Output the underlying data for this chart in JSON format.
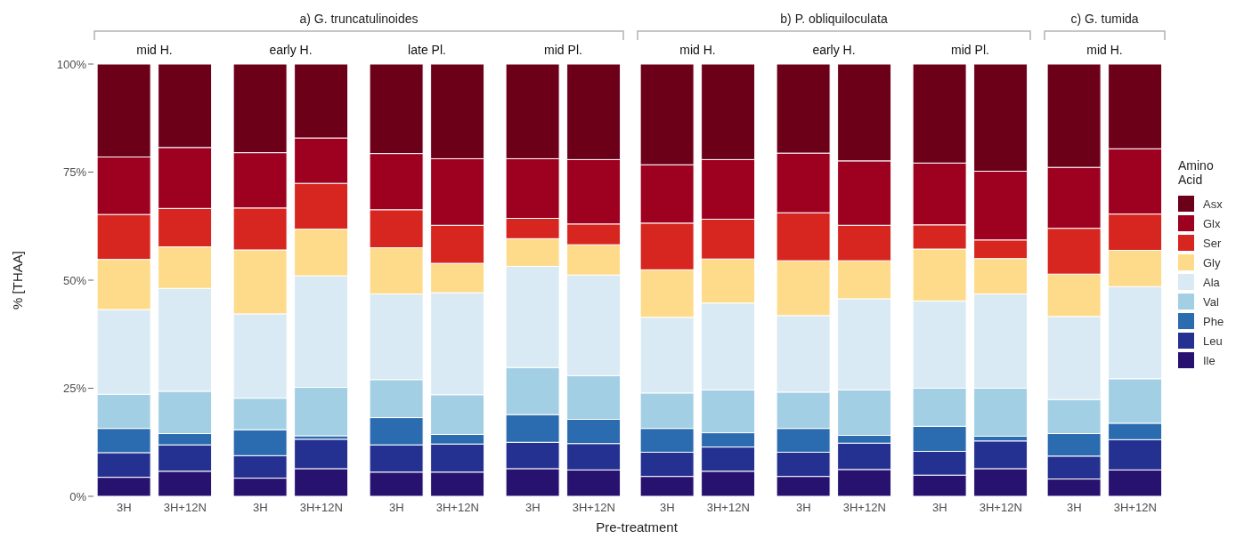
{
  "chart_data": [
    {
      "type": "bar",
      "stacked": true,
      "title": "a) G. truncatulinoides",
      "ylabel": "% [THAA]",
      "annotations": [
        "mid H.",
        "early H.",
        "late Pl.",
        "mid Pl."
      ],
      "categories": [
        "3H",
        "3H+12N",
        "3H",
        "3H+12N",
        "3H",
        "3H+12N",
        "3H",
        "3H+12N"
      ],
      "ylim": [
        0,
        100
      ],
      "yticks": [
        {
          "value": 0,
          "label": "0%"
        },
        {
          "value": 25,
          "label": "25%"
        },
        {
          "value": 50,
          "label": "50%"
        },
        {
          "value": 75,
          "label": "75%"
        },
        {
          "value": 100,
          "label": "100%"
        }
      ],
      "series": [
        {
          "color": "#281270",
          "values": [
            4.4,
            5.8,
            4.2,
            6.4,
            5.6,
            5.6,
            6.4,
            6.1
          ]
        },
        {
          "color": "#253190",
          "values": [
            5.7,
            6.1,
            5.2,
            6.8,
            6.3,
            6.5,
            6.1,
            6.1
          ]
        },
        {
          "color": "#2b6bb0",
          "values": [
            5.6,
            2.6,
            6.0,
            0.8,
            6.3,
            2.2,
            6.4,
            5.6
          ]
        },
        {
          "color": "#a3cfe4",
          "values": [
            7.9,
            9.8,
            7.3,
            11.2,
            8.8,
            9.2,
            10.9,
            10.1
          ]
        },
        {
          "color": "#d9eaf4",
          "values": [
            19.6,
            23.8,
            19.5,
            25.8,
            19.8,
            23.6,
            23.4,
            23.3
          ]
        },
        {
          "color": "#fedb8b",
          "values": [
            11.6,
            9.6,
            14.8,
            10.8,
            10.7,
            6.8,
            6.4,
            7.0
          ]
        },
        {
          "color": "#d6261f",
          "values": [
            10.4,
            8.9,
            9.7,
            10.6,
            8.8,
            8.8,
            4.7,
            4.8
          ]
        },
        {
          "color": "#9e0020",
          "values": [
            13.3,
            14.1,
            12.8,
            10.5,
            13.0,
            15.4,
            13.8,
            14.9
          ]
        },
        {
          "color": "#6c0019",
          "values": [
            21.5,
            19.3,
            20.5,
            17.1,
            20.7,
            21.9,
            21.9,
            22.1
          ]
        }
      ]
    },
    {
      "type": "bar",
      "stacked": true,
      "title": "b) P. obliquiloculata",
      "xlabel": "Pre-treatment",
      "tick_labels": "x",
      "annotations": [
        "mid H.",
        "early H.",
        "mid Pl."
      ],
      "categories": [
        "3H",
        "3H+12N",
        "3H",
        "3H+12N",
        "3H",
        "3H+12N"
      ],
      "ylim": [
        0,
        100
      ],
      "series": [
        {
          "color": "#281270",
          "values": [
            4.6,
            5.8,
            4.6,
            6.2,
            4.9,
            6.4
          ]
        },
        {
          "color": "#253190",
          "values": [
            5.6,
            5.6,
            5.6,
            6.1,
            5.5,
            6.4
          ]
        },
        {
          "color": "#2b6bb0",
          "values": [
            5.5,
            3.3,
            5.5,
            1.8,
            5.8,
            1.1
          ]
        },
        {
          "color": "#a3cfe4",
          "values": [
            8.2,
            9.9,
            8.4,
            10.5,
            8.8,
            11.1
          ]
        },
        {
          "color": "#d9eaf4",
          "values": [
            17.5,
            20.1,
            17.7,
            21.1,
            20.2,
            21.8
          ]
        },
        {
          "color": "#fedb8b",
          "values": [
            11.0,
            10.2,
            12.7,
            8.8,
            12.0,
            8.2
          ]
        },
        {
          "color": "#d6261f",
          "values": [
            10.8,
            9.2,
            11.1,
            8.2,
            5.6,
            4.3
          ]
        },
        {
          "color": "#9e0020",
          "values": [
            13.5,
            13.8,
            13.8,
            14.9,
            14.3,
            15.9
          ]
        },
        {
          "color": "#6c0019",
          "values": [
            23.3,
            22.1,
            20.6,
            22.4,
            22.9,
            24.8
          ]
        }
      ]
    },
    {
      "type": "bar",
      "stacked": true,
      "title": "c) G. tumida",
      "tick_labels": "x",
      "legend": "right",
      "legend_title": "Amino Acid",
      "annotations": [
        "mid H."
      ],
      "categories": [
        "3H",
        "3H+12N"
      ],
      "ylim": [
        0,
        100
      ],
      "series": [
        {
          "name": "Ile",
          "color": "#281270",
          "values": [
            4.0,
            6.1
          ]
        },
        {
          "name": "Leu",
          "color": "#253190",
          "values": [
            5.3,
            7.0
          ]
        },
        {
          "name": "Phe",
          "color": "#2b6bb0",
          "values": [
            5.2,
            3.8
          ]
        },
        {
          "name": "Val",
          "color": "#a3cfe4",
          "values": [
            7.9,
            10.3
          ]
        },
        {
          "name": "Ala",
          "color": "#d9eaf4",
          "values": [
            19.2,
            21.3
          ]
        },
        {
          "name": "Gly",
          "color": "#fedb8b",
          "values": [
            9.8,
            8.4
          ]
        },
        {
          "name": "Ser",
          "color": "#d6261f",
          "values": [
            10.6,
            8.4
          ]
        },
        {
          "name": "Glx",
          "color": "#9e0020",
          "values": [
            14.1,
            15.1
          ]
        },
        {
          "name": "Asx",
          "color": "#6c0019",
          "values": [
            23.9,
            19.6
          ]
        }
      ]
    }
  ]
}
